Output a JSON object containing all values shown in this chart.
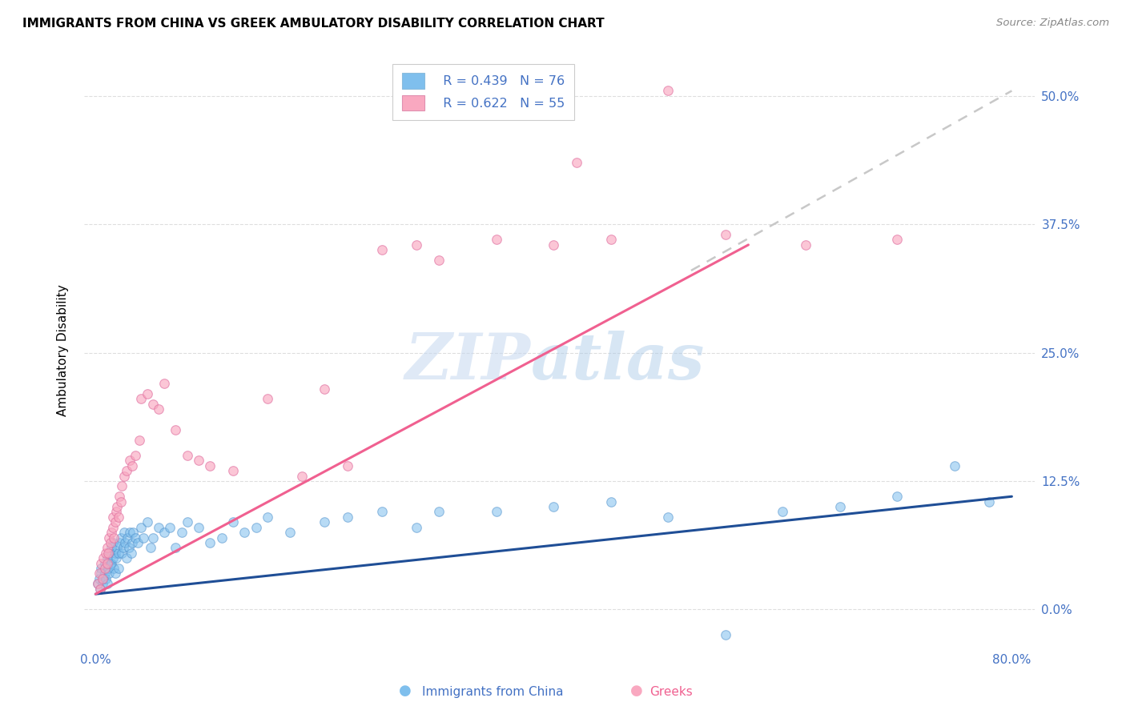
{
  "title": "IMMIGRANTS FROM CHINA VS GREEK AMBULATORY DISABILITY CORRELATION CHART",
  "source": "Source: ZipAtlas.com",
  "ylabel": "Ambulatory Disability",
  "yticks": [
    "0.0%",
    "12.5%",
    "25.0%",
    "37.5%",
    "50.0%"
  ],
  "ytick_vals": [
    0.0,
    12.5,
    25.0,
    37.5,
    50.0
  ],
  "xlim": [
    -1.0,
    82.0
  ],
  "ylim": [
    -3.5,
    54.0
  ],
  "legend_r1": "R = 0.439   N = 76",
  "legend_r2": "R = 0.622   N = 55",
  "color_blue": "#7FBFED",
  "color_pink": "#F9A8C0",
  "color_blue_text": "#4472C4",
  "color_pink_line": "#F06090",
  "color_blue_line": "#1F4E96",
  "color_dashed_line": "#C8C8C8",
  "watermark_zip": "ZIP",
  "watermark_atlas": "atlas",
  "blue_scatter_x": [
    0.2,
    0.3,
    0.4,
    0.5,
    0.5,
    0.6,
    0.7,
    0.8,
    0.8,
    0.9,
    1.0,
    1.0,
    1.1,
    1.2,
    1.2,
    1.3,
    1.4,
    1.4,
    1.5,
    1.5,
    1.6,
    1.7,
    1.7,
    1.8,
    1.9,
    2.0,
    2.0,
    2.1,
    2.2,
    2.3,
    2.4,
    2.5,
    2.6,
    2.7,
    2.8,
    2.9,
    3.0,
    3.1,
    3.2,
    3.3,
    3.5,
    3.7,
    4.0,
    4.2,
    4.5,
    4.8,
    5.0,
    5.5,
    6.0,
    6.5,
    7.0,
    7.5,
    8.0,
    9.0,
    10.0,
    11.0,
    12.0,
    13.0,
    14.0,
    15.0,
    17.0,
    20.0,
    22.0,
    25.0,
    28.0,
    30.0,
    35.0,
    40.0,
    45.0,
    50.0,
    55.0,
    60.0,
    65.0,
    70.0,
    75.0,
    78.0
  ],
  "blue_scatter_y": [
    2.5,
    3.0,
    2.0,
    4.0,
    3.5,
    2.5,
    3.0,
    4.5,
    3.5,
    3.0,
    5.0,
    2.5,
    4.0,
    5.5,
    3.5,
    4.5,
    6.0,
    4.5,
    5.0,
    6.5,
    4.0,
    5.5,
    3.5,
    5.0,
    6.0,
    5.5,
    4.0,
    6.5,
    7.0,
    5.5,
    6.0,
    7.5,
    6.5,
    5.0,
    7.0,
    6.0,
    7.5,
    5.5,
    6.5,
    7.5,
    7.0,
    6.5,
    8.0,
    7.0,
    8.5,
    6.0,
    7.0,
    8.0,
    7.5,
    8.0,
    6.0,
    7.5,
    8.5,
    8.0,
    6.5,
    7.0,
    8.5,
    7.5,
    8.0,
    9.0,
    7.5,
    8.5,
    9.0,
    9.5,
    8.0,
    9.5,
    9.5,
    10.0,
    10.5,
    9.0,
    -2.5,
    9.5,
    10.0,
    11.0,
    14.0,
    10.5
  ],
  "pink_scatter_x": [
    0.2,
    0.3,
    0.4,
    0.5,
    0.6,
    0.7,
    0.8,
    0.9,
    1.0,
    1.0,
    1.1,
    1.2,
    1.3,
    1.4,
    1.5,
    1.5,
    1.6,
    1.7,
    1.8,
    1.9,
    2.0,
    2.1,
    2.2,
    2.3,
    2.5,
    2.7,
    3.0,
    3.2,
    3.5,
    3.8,
    4.0,
    4.5,
    5.0,
    5.5,
    6.0,
    7.0,
    8.0,
    9.0,
    10.0,
    12.0,
    15.0,
    18.0,
    20.0,
    22.0,
    25.0,
    28.0,
    30.0,
    35.0,
    40.0,
    42.0,
    45.0,
    50.0,
    55.0,
    62.0,
    70.0
  ],
  "pink_scatter_y": [
    2.5,
    3.5,
    2.0,
    4.5,
    3.0,
    5.0,
    4.0,
    5.5,
    4.5,
    6.0,
    5.5,
    7.0,
    6.5,
    7.5,
    8.0,
    9.0,
    7.0,
    8.5,
    9.5,
    10.0,
    9.0,
    11.0,
    10.5,
    12.0,
    13.0,
    13.5,
    14.5,
    14.0,
    15.0,
    16.5,
    20.5,
    21.0,
    20.0,
    19.5,
    22.0,
    17.5,
    15.0,
    14.5,
    14.0,
    13.5,
    20.5,
    13.0,
    21.5,
    14.0,
    35.0,
    35.5,
    34.0,
    36.0,
    35.5,
    43.5,
    36.0,
    50.5,
    36.5,
    35.5,
    36.0
  ],
  "blue_line_x": [
    0.0,
    80.0
  ],
  "blue_line_y": [
    1.5,
    11.0
  ],
  "pink_line_x": [
    0.0,
    57.0
  ],
  "pink_line_y": [
    1.5,
    35.5
  ],
  "dashed_line_x": [
    52.0,
    80.0
  ],
  "dashed_line_y": [
    33.0,
    50.5
  ]
}
